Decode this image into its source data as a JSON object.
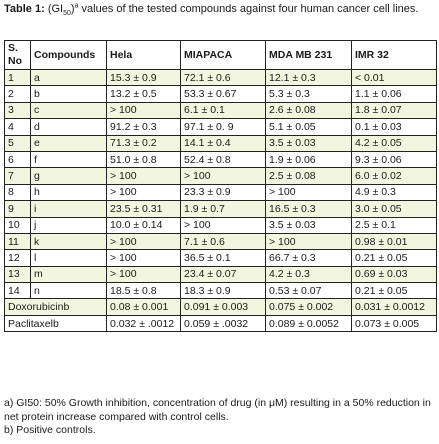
{
  "caption": {
    "label": "Table 1:",
    "text_before": " (GI",
    "sub": "50",
    "text_after": ")",
    "sup": "a",
    "text_rest": " values of the tested compounds against four human cancer cell lines."
  },
  "table": {
    "headers": [
      "S. No",
      "Compounds",
      "Hela",
      "MIAPACA",
      "MDA MB 231",
      "IMR 32"
    ],
    "rows": [
      [
        "1",
        "a",
        "15.3 ± 0.9",
        "72.1 ± 0.6",
        "12.1 ± 0.3",
        "< 0.01"
      ],
      [
        "2",
        "b",
        "13.2 ± 0.5",
        "53.3 ± 0.67",
        "5.3 ± 0.3",
        "1.1 ± 0.06"
      ],
      [
        "3",
        "c",
        "> 100",
        "6.1 ± 0.1",
        "2.6 ± 0.08",
        "1.8 ± 0.07"
      ],
      [
        "4",
        "d",
        "91.2 ± 0.3",
        "97.1 ± 0. 9",
        "5.1 ± 0.05",
        "0.1 ± 0.03"
      ],
      [
        "5",
        "e",
        "71.3 ± 0.2",
        "14.1 ± 0.4",
        "3.5 ± 0.03",
        "4.2 ± 0.05"
      ],
      [
        "6",
        "f",
        "51.0 ± 0.8",
        "52.4 ± 0.8",
        "1.9 ± 0.06",
        "9.3 ± 0.06"
      ],
      [
        "7",
        "g",
        "> 100",
        "> 100",
        "2.5 ± 0.08",
        "6.0 ± 0.02"
      ],
      [
        "8",
        "h",
        "> 100",
        "23.3 ± 0.9",
        "> 100",
        "4.9 ± 0.3"
      ],
      [
        "9",
        "i",
        "23.5 ± 0.31",
        "1.9 ± 0.7",
        "16.5 ± 0.3",
        "3.0 ± 0.05"
      ],
      [
        "10",
        "j",
        "10.0 ± 0.14",
        "> 100",
        "3.5 ± 0.03",
        "2.5 ± 0.1"
      ],
      [
        "11",
        "k",
        "> 100",
        "7.1 ± 0.6",
        "> 100",
        "0.98 ± 0.01"
      ],
      [
        "12",
        "l",
        "> 100",
        "36.5 ± 0.1",
        "66.7 ± 0.3",
        "0.21 ± 0.05"
      ],
      [
        "13",
        "m",
        "> 100",
        "23.4 ± 0.07",
        "4.2 ± 0.3",
        "0.69 ± 0.03"
      ],
      [
        "14",
        "n",
        "18.5 ± 0.8",
        "18.3 ± 0.9",
        "0.53 ± 0.07",
        "0.21 ± 0.05"
      ],
      [
        "Doxorubicinb",
        "",
        "0.08 ± 0.001",
        "0.091 ± 0.003",
        "0.075 ± 0.002",
        "0.031 ± 0.0012"
      ],
      [
        "Paclitaxelb",
        "",
        "0.032 ± .0012",
        "0.059 ± .0032",
        "0.089 ± 0.0052",
        "0.073 ± 0.005"
      ]
    ]
  },
  "footnotes": [
    "a) GI50: 50% Growth inhibition, concentration of drug (in μM) resulting in a 50% reduction in net protein increase compared with control cells.",
    "b) Positive controls."
  ]
}
